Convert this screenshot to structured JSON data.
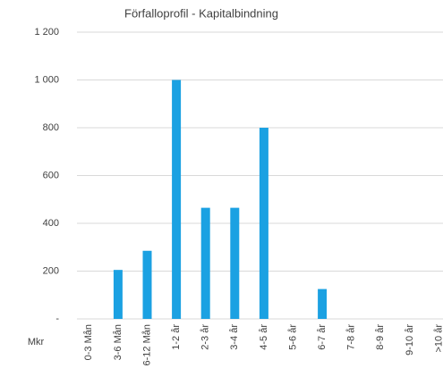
{
  "chart_data": {
    "type": "bar",
    "title": "Förfalloprofil - Kapitalbindning",
    "y_label": "Mkr",
    "categories": [
      "0-3 Mån",
      "3-6 Mån",
      "6-12 Mån",
      "1-2 år",
      "2-3 år",
      "3-4 år",
      "4-5 år",
      "5-6 år",
      "6-7 år",
      "7-8 år",
      "8-9 år",
      "9-10 år",
      ">10 år"
    ],
    "values": [
      0,
      205,
      285,
      1000,
      465,
      465,
      800,
      0,
      125,
      0,
      0,
      0,
      0
    ],
    "color": "#1ba1e2",
    "ylim": [
      0,
      1200
    ],
    "yticks": [
      {
        "value": 0,
        "label": "-"
      },
      200,
      400,
      600,
      800,
      {
        "value": 1000,
        "label": "1 000"
      },
      {
        "value": 1200,
        "label": "1 200"
      }
    ],
    "grid": true
  }
}
